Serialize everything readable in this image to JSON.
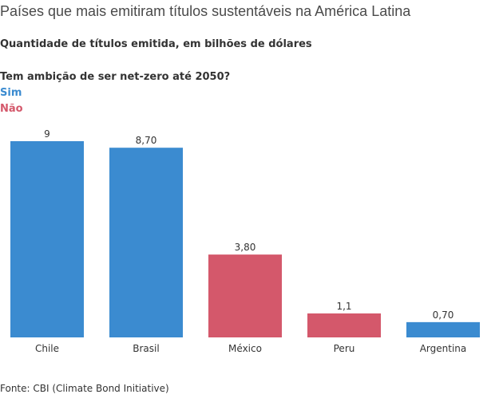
{
  "title": "Países que mais emitiram títulos sustentáveis na América Latina",
  "subtitle": "Quantidade de títulos emitida, em bilhões de dólares",
  "legend": {
    "title": "Tem ambição de ser net-zero até 2050?",
    "items": [
      {
        "label": "Sim",
        "color": "#3b8bd0"
      },
      {
        "label": "Não",
        "color": "#d4586b"
      }
    ]
  },
  "source": "Fonte: CBI (Climate Bond Initiative)",
  "chart_data": {
    "type": "bar",
    "categories": [
      "Chile",
      "Brasil",
      "México",
      "Peru",
      "Argentina"
    ],
    "values": [
      9,
      8.7,
      3.8,
      1.1,
      0.7
    ],
    "value_labels": [
      "9",
      "8,70",
      "3,80",
      "1,1",
      "0,70"
    ],
    "groups": [
      "Sim",
      "Sim",
      "Não",
      "Não",
      "Sim"
    ],
    "colors": {
      "Sim": "#3b8bd0",
      "Não": "#d4586b"
    },
    "ylim": [
      0,
      9
    ],
    "grid": false
  }
}
